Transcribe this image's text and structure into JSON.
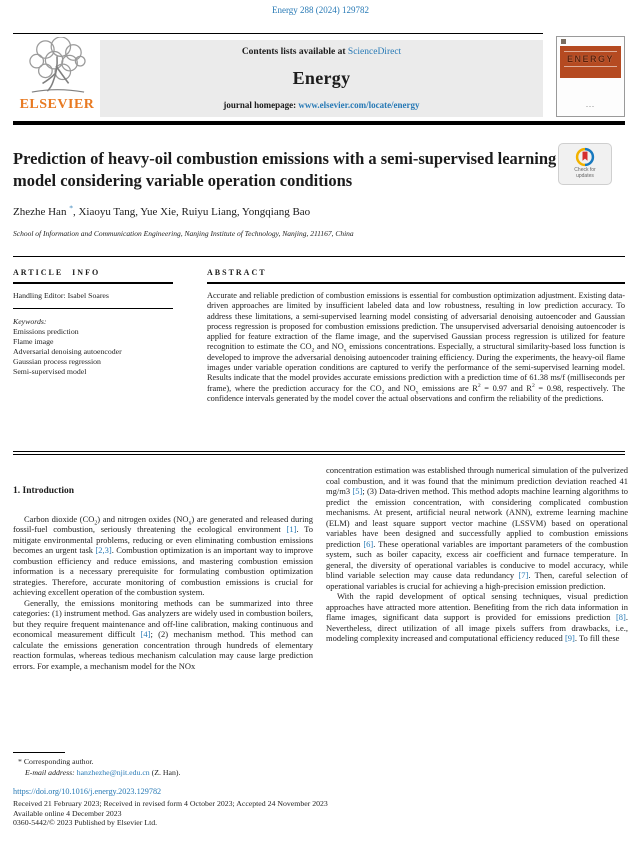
{
  "colors": {
    "link_blue": "#2779b5",
    "elsevier_orange": "#e87a22",
    "cover_red": "#b54a21",
    "header_gray": "#ebebeb",
    "text": "#1c1c1c"
  },
  "top": {
    "citation": "Energy 288 (2024) 129782"
  },
  "masthead": {
    "contents_prefix": "Contents lists available at",
    "sciencedirect": "ScienceDirect",
    "journal": "Energy",
    "homepage_label": "journal homepage:",
    "homepage_url": "www.elsevier.com/locate/energy",
    "elsevier": "ELSEVIER",
    "cover_title": "ENERGY",
    "check_line1": "Check for",
    "check_line2": "updates"
  },
  "article": {
    "title": "Prediction of heavy-oil combustion emissions with a semi-supervised learning model considering variable operation conditions",
    "authors": "Zhezhe Han ^*^, Xiaoyu Tang, Yue Xie, Ruiyu Liang, Yongqiang Bao",
    "affiliation": "School of Information and Communication Engineering, Nanjing Institute of Technology, Nanjing, 211167, China"
  },
  "article_info": {
    "heading": "ARTICLE INFO",
    "handling_editor": "Handling Editor: Isabel Soares",
    "keywords_label": "Keywords:",
    "keywords": [
      "Emissions prediction",
      "Flame image",
      "Adversarial denoising autoencoder",
      "Gaussian process regression",
      "Semi-supervised model"
    ]
  },
  "abstract": {
    "heading": "ABSTRACT",
    "text": "Accurate and reliable prediction of combustion emissions is essential for combustion optimization adjustment. Existing data-driven approaches are limited by insufficient labeled data and low robustness, resulting in low prediction accuracy. To address these limitations, a semi-supervised learning model consisting of adversarial denoising autoencoder and Gaussian process regression is proposed for combustion emissions prediction. The unsupervised adversarial denoising autoencoder is applied for feature extraction of the flame image, and the supervised Gaussian process regression is utilized for feature recognition to estimate the CO~2~ and NO~x~ emissions concentrations. Especially, a structural similarity-based loss function is developed to improve the adversarial denoising autoencoder training efficiency. During the experiments, the heavy-oil flame images under variable operation conditions are captured to verify the performance of the semi-supervised learning model. Results indicate that the model provides accurate emissions prediction with a prediction time of 61.38 ms/f (milliseconds per frame), where the prediction accuracy for the CO~2~ and NO~x~ emissions are R^2^ = 0.97 and R^2^ = 0.98, respectively. The confidence intervals generated by the model cover the actual observations and confirm the reliability of the predictions."
  },
  "introduction": {
    "heading": "1. Introduction",
    "left_paragraphs": [
      "Carbon dioxide (CO~2~) and nitrogen oxides (NO~x~) are generated and released during fossil-fuel combustion, seriously threatening the ecological environment [1]. To mitigate environmental problems, reducing or even eliminating combustion emissions becomes an urgent task [2,3]. Combustion optimization is an important way to improve combustion efficiency and reduce emissions, and mastering combustion emission information is a necessary prerequisite for formulating combustion optimization strategies. Therefore, accurate monitoring of combustion emissions is crucial for achieving excellent operation of the combustion system.",
      "Generally, the emissions monitoring methods can be summarized into three categories: (1) instrument method. Gas analyzers are widely used in combustion boilers, but they require frequent maintenance and off-line calibration, making continuous and economical measurement difficult [4]; (2) mechanism method. This method can calculate the emissions generation concentration through hundreds of elementary reaction formulas, whereas tedious mechanism calculation may cause large prediction errors. For example, a mechanism model for the NOx"
    ],
    "right_paragraphs": [
      "concentration estimation was established through numerical simulation of the pulverized coal combustion, and it was found that the minimum prediction deviation reached 41 mg/m3 [5]; (3) Data-driven method. This method adopts machine learning algorithms to predict the emission concentration, with considering complicated combustion mechanisms. At present, artificial neural network (ANN), extreme learning machine (ELM) and least square support vector machine (LSSVM) based on operational variables have been designed and successfully applied to combustion emissions prediction [6]. These operational variables are important parameters of the combustion system, such as boiler capacity, excess air coefficient and furnace temperature. In general, the diversity of operational variables is conducive to model accuracy, while blind variable selection may cause data redundancy [7]. Then, careful selection of operational variables is crucial for achieving a high-precision emission prediction.",
      "With the rapid development of optical sensing techniques, visual prediction approaches have attracted more attention. Benefiting from the rich data information in flame images, significant data support is provided for emissions prediction [8]. Nevertheless, direct utilization of all image pixels suffers from drawbacks, i.e., modeling complexity increased and computational efficiency reduced [9]. To fill these"
    ]
  },
  "footnotes": {
    "corresponding": "* Corresponding author.",
    "email_label": "E-mail address:",
    "email": "hanzhezhe@njit.edu.cn",
    "email_suffix": "(Z. Han).",
    "doi": "https://doi.org/10.1016/j.energy.2023.129782",
    "received": "Received 21 February 2023; Received in revised form 4 October 2023; Accepted 24 November 2023",
    "online": "Available online 4 December 2023",
    "copyright": "0360-5442/© 2023 Published by Elsevier Ltd."
  }
}
